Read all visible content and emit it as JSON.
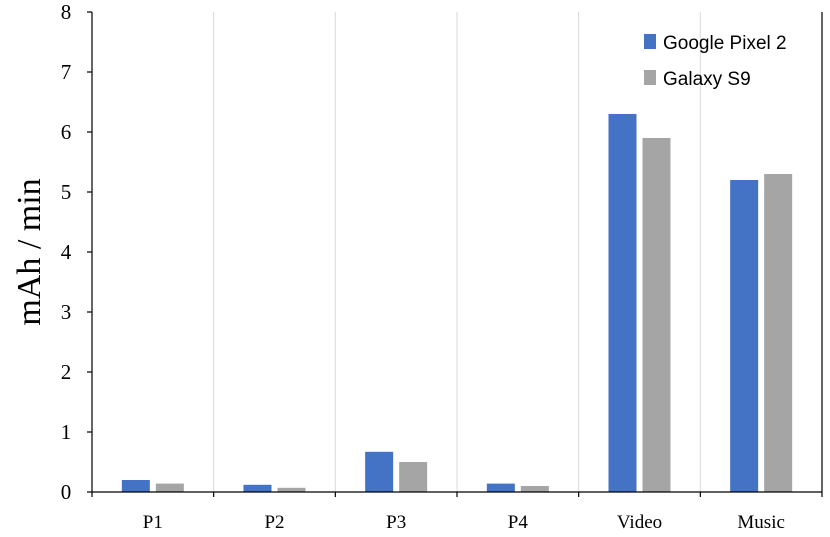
{
  "chart_data": {
    "type": "bar",
    "title": "",
    "xlabel": "",
    "ylabel": "mAh / min",
    "ylim": [
      0,
      8
    ],
    "yticks": [
      0,
      1,
      2,
      3,
      4,
      5,
      6,
      7,
      8
    ],
    "grid": "vertical",
    "legend": "top-right",
    "categories": [
      "P1",
      "P2",
      "P3",
      "P4",
      "Video",
      "Music"
    ],
    "series": [
      {
        "name": "Google Pixel 2",
        "color": "#4472c4",
        "values": [
          0.2,
          0.12,
          0.67,
          0.14,
          6.3,
          5.2
        ]
      },
      {
        "name": "Galaxy S9",
        "color": "#a5a5a5",
        "values": [
          0.14,
          0.07,
          0.5,
          0.1,
          5.9,
          5.3
        ]
      }
    ]
  }
}
